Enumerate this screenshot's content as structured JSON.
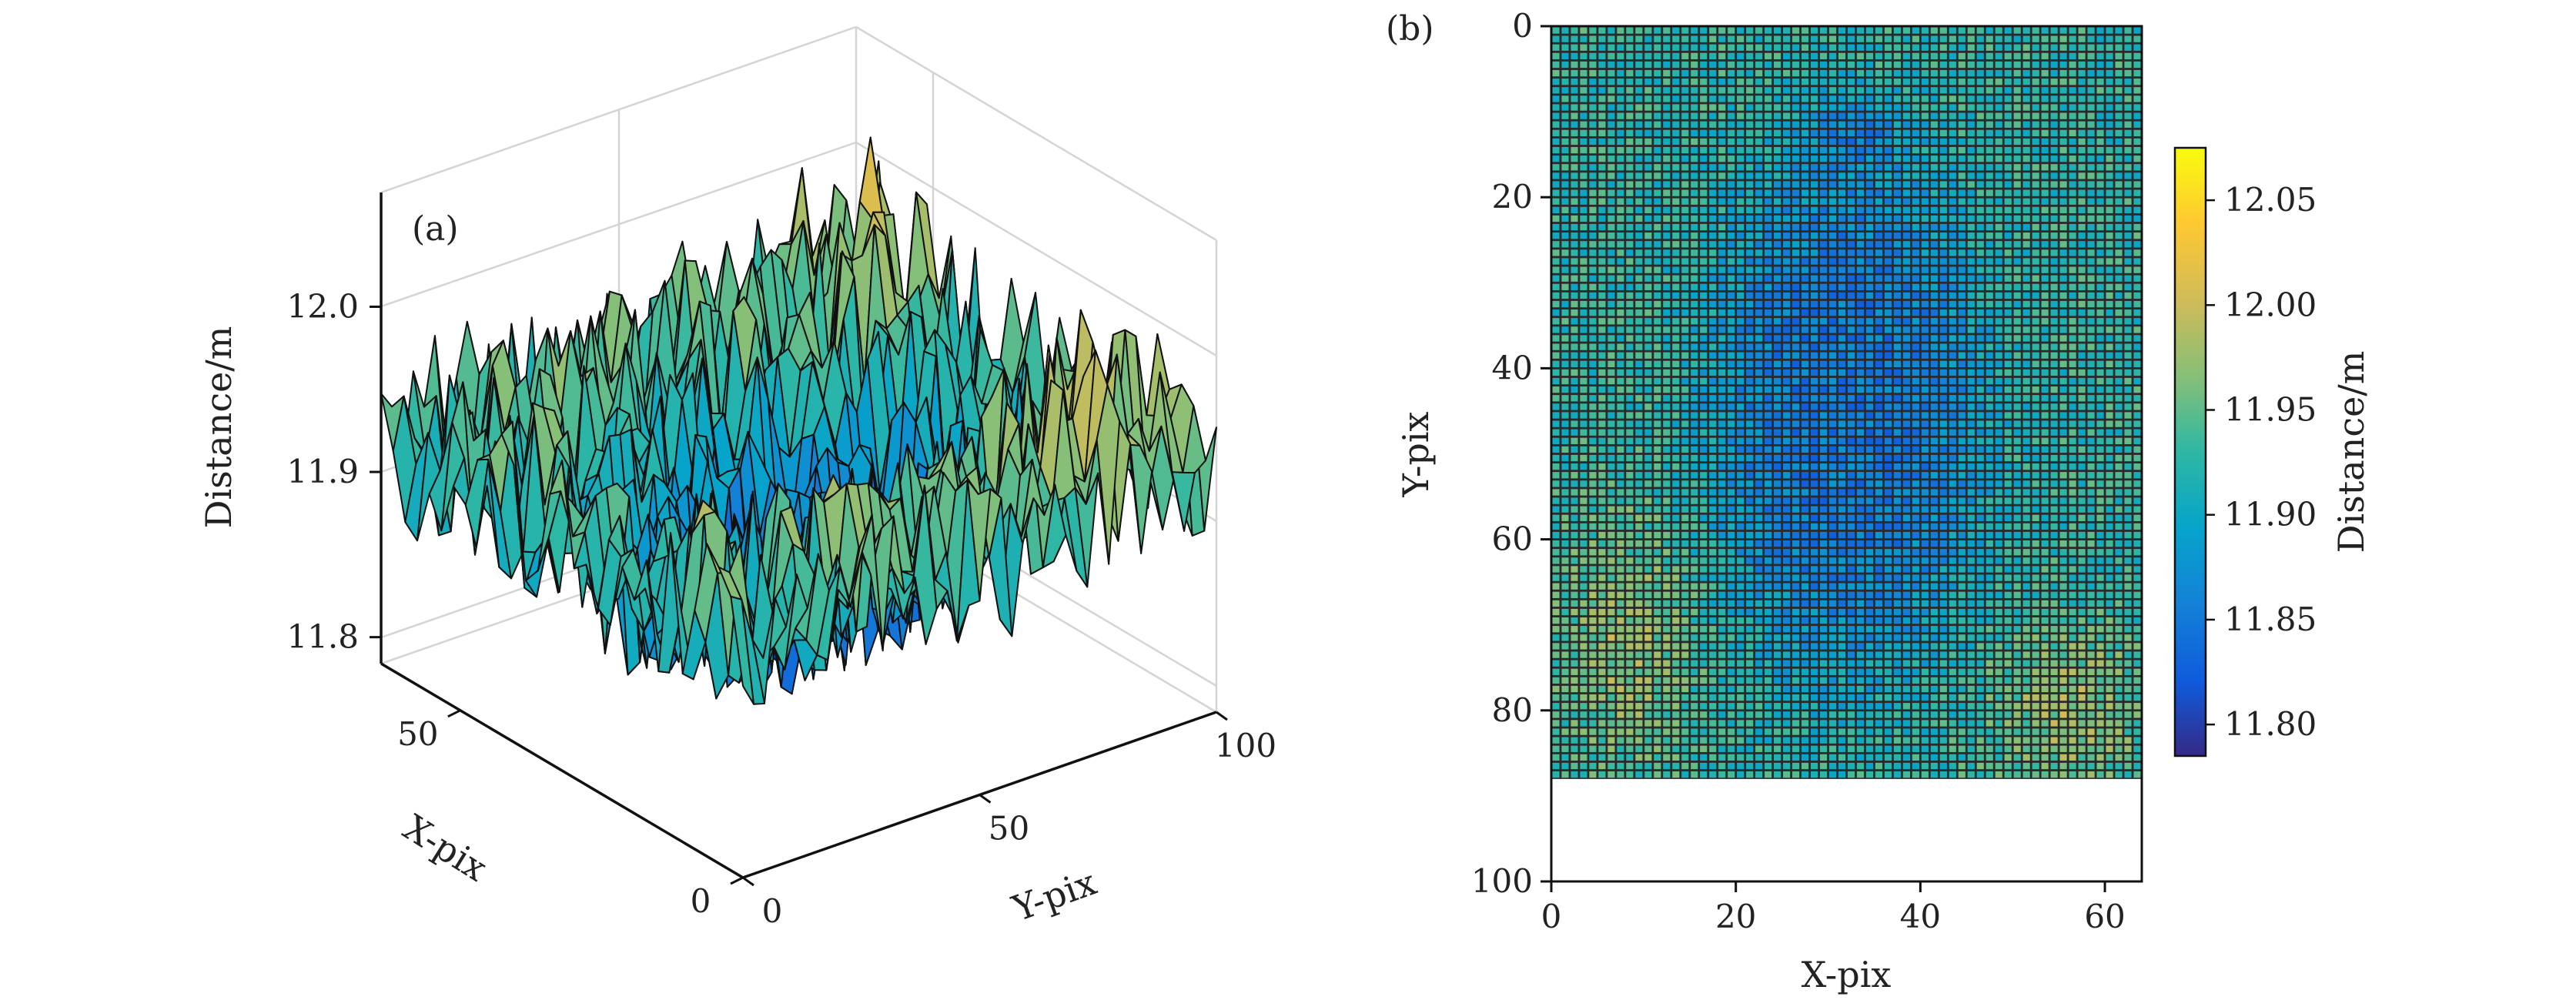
{
  "figure": {
    "panels": [
      "(a)",
      "(b)"
    ]
  },
  "chart_data": [
    {
      "type": "surface",
      "panel_label": "(a)",
      "title": "",
      "xlabel": "X-pix",
      "ylabel": "Y-pix",
      "zlabel": "Distance/m",
      "xlim": [
        0,
        64
      ],
      "ylim": [
        0,
        100
      ],
      "zlim": [
        11.78,
        12.07
      ],
      "xticks": [
        0,
        50
      ],
      "yticks": [
        0,
        50,
        100
      ],
      "zticks": [
        11.8,
        11.9,
        12.0
      ],
      "xticklabels": [
        "0",
        "50"
      ],
      "yticklabels": [
        "0",
        "50",
        "100"
      ],
      "zticklabels": [
        "11.8",
        "11.9",
        "12.0"
      ],
      "grid": true,
      "surface_description": "noisy surface ~11.92 m with a central depression (~11.80 m) at X 20-45, Y 20-80; colormap parula (blue low, yellow high)"
    },
    {
      "type": "heatmap",
      "panel_label": "(b)",
      "title": "",
      "xlabel": "X-pix",
      "ylabel": "Y-pix",
      "xlim": [
        0,
        64
      ],
      "ylim": [
        100,
        0
      ],
      "xticks": [
        0,
        20,
        40,
        60
      ],
      "yticks": [
        0,
        20,
        40,
        60,
        80,
        100
      ],
      "xticklabels": [
        "0",
        "20",
        "40",
        "60"
      ],
      "yticklabels": [
        "0",
        "20",
        "40",
        "60",
        "80",
        "100"
      ],
      "grid_cols": 64,
      "grid_rows": 88,
      "colorbar": {
        "label": "Distance/m",
        "range": [
          11.785,
          12.075
        ],
        "ticks": [
          11.8,
          11.85,
          11.9,
          11.95,
          12.0,
          12.05
        ],
        "ticklabels": [
          "11.80",
          "11.85",
          "11.90",
          "11.95",
          "12.00",
          "12.05"
        ],
        "colors": [
          "#352a87",
          "#0f5cdd",
          "#1481d6",
          "#06a4ca",
          "#2eb7a4",
          "#87bf77",
          "#d1bb59",
          "#fec832",
          "#f9fb0e"
        ]
      },
      "field_description": "background ~11.92 m; central blob ~11.84 m spanning X 15-50, Y 5-80 with a darker spot (~11.80 m) near X 33, Y 12; warmer (~11.98-12.05 m) patches near the lower-left and lower-right corners"
    }
  ]
}
